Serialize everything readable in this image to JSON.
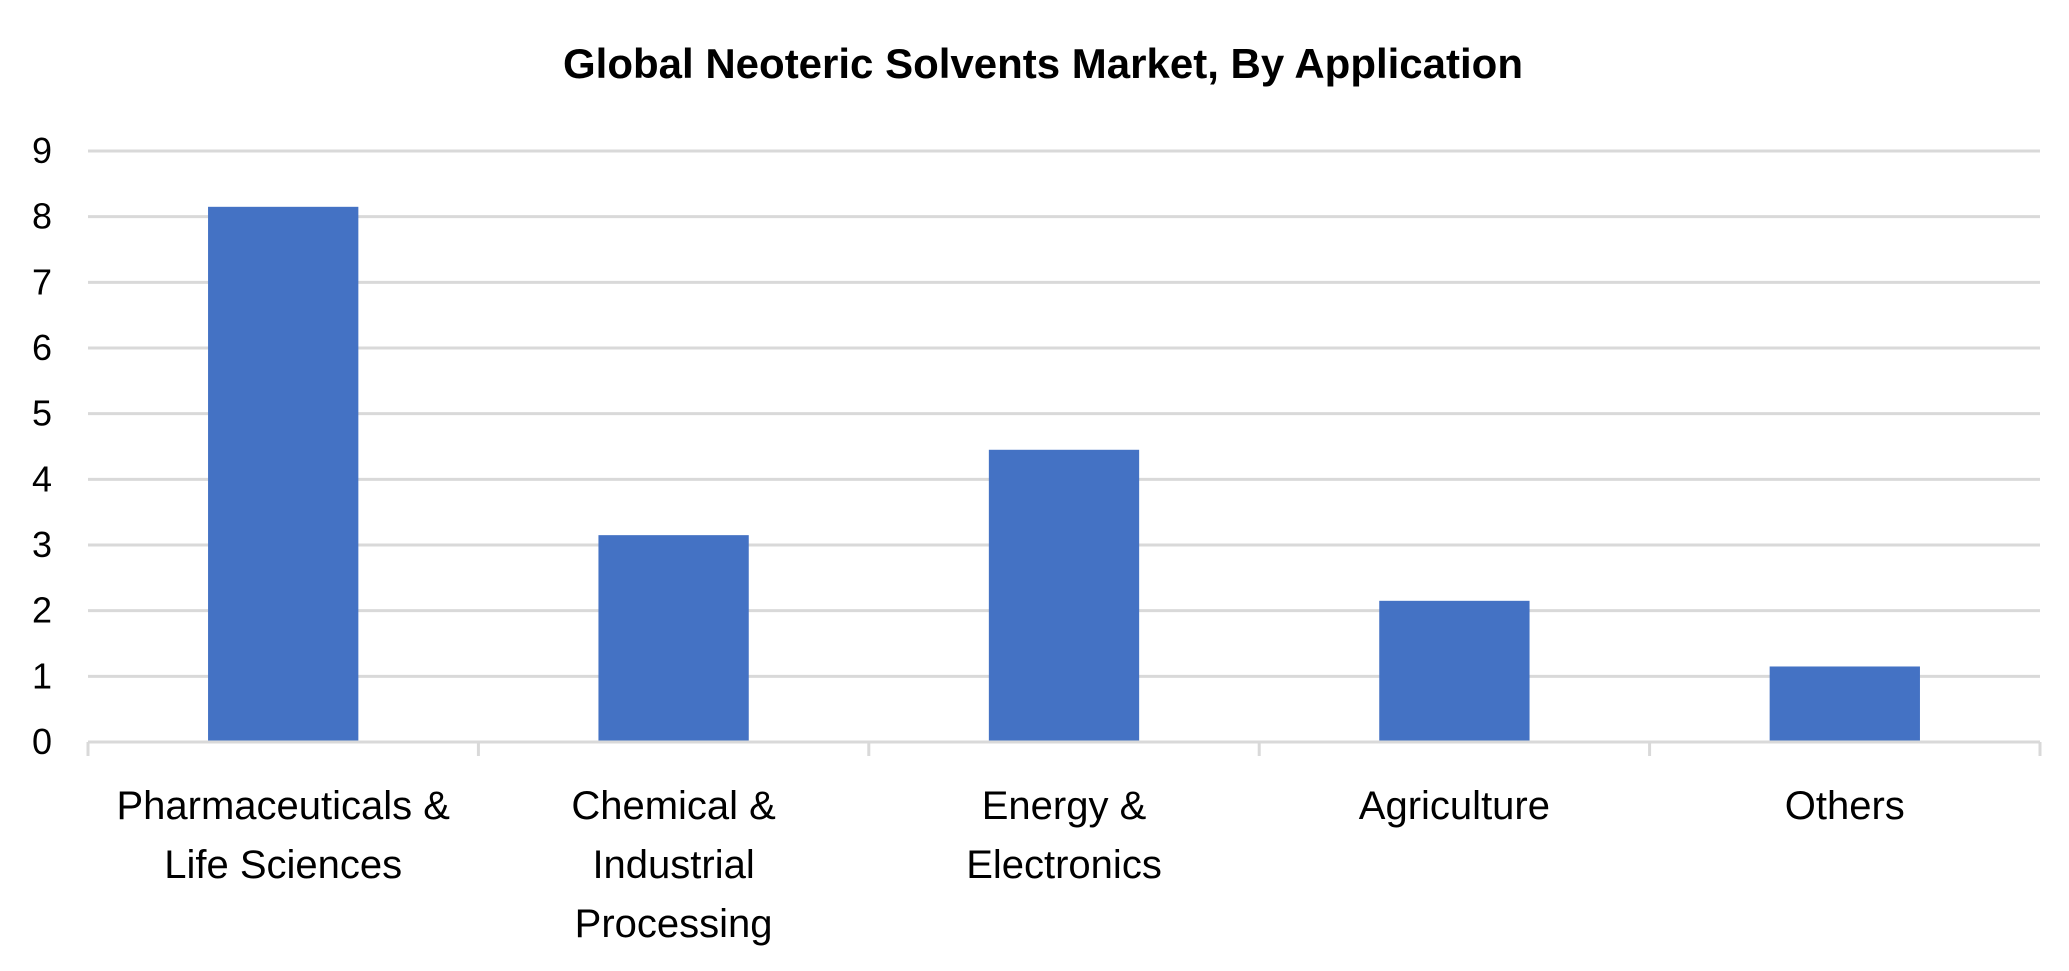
{
  "chart_data": {
    "type": "bar",
    "title": "Global Neoteric Solvents Market, By Application",
    "xlabel": "",
    "ylabel": "",
    "categories": [
      [
        "Pharmaceuticals &",
        "Life Sciences"
      ],
      [
        "Chemical &",
        "Industrial",
        "Processing"
      ],
      [
        "Energy &",
        "Electronics"
      ],
      [
        "Agriculture"
      ],
      [
        "Others"
      ]
    ],
    "values": [
      8.15,
      3.15,
      4.45,
      2.15,
      1.15
    ],
    "ylim": [
      0,
      9
    ],
    "yticks": [
      "0",
      "1",
      "2",
      "3",
      "4",
      "5",
      "6",
      "7",
      "8",
      "9"
    ],
    "grid": true,
    "legend": "none",
    "bar_color": "#4472C4",
    "grid_color": "#D9D9D9"
  }
}
